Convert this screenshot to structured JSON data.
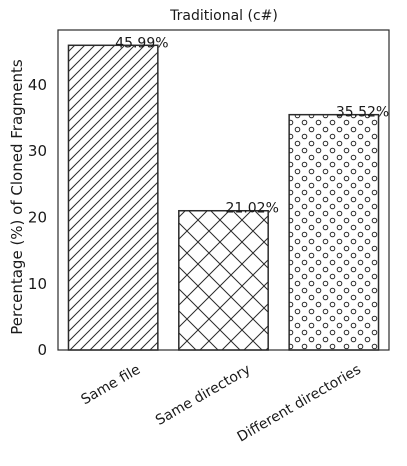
{
  "chart_data": {
    "type": "bar",
    "title": "Traditional (c#)",
    "xlabel": "",
    "ylabel": "Percentage (%) of Cloned Fragments",
    "categories": [
      "Same file",
      "Same directory",
      "Different directories"
    ],
    "values": [
      45.99,
      21.02,
      35.52
    ],
    "data_labels": [
      "45.99%",
      "21.02%",
      "35.52%"
    ],
    "patterns": [
      "diagonal-hatch",
      "crosshatch",
      "circles"
    ],
    "ylim": [
      0,
      48.3
    ],
    "yticks": [
      0,
      10,
      20,
      30,
      40
    ],
    "grid": false,
    "legend": "none",
    "colors": {
      "bar_fill": "#ffffff",
      "edge": "#2b2b2b",
      "text": "#1a1a1a"
    }
  }
}
